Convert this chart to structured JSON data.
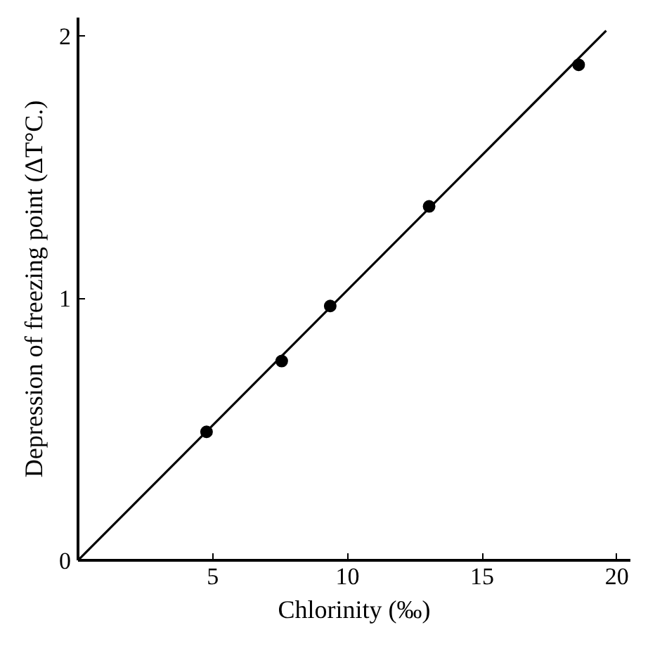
{
  "chart_data": {
    "type": "scatter",
    "xlabel": "Chlorinity (‰)",
    "ylabel": "Depression of freezing point (ΔT°C.)",
    "x": [
      4.77,
      7.56,
      9.36,
      13.03,
      18.58
    ],
    "series": [
      {
        "color": "#000000",
        "marker": "circle",
        "values": [
          0.49,
          0.76,
          0.97,
          1.35,
          1.89
        ]
      },
      {
        "type": "line",
        "color": "#000000",
        "x": [
          0,
          19.6
        ],
        "values": [
          0,
          2.02
        ]
      }
    ],
    "xlim": [
      0,
      20.5
    ],
    "ylim": [
      0,
      2.07
    ],
    "xticks": [
      5,
      10,
      15,
      20
    ],
    "yticks": [
      0,
      1,
      2
    ],
    "grid": false
  }
}
